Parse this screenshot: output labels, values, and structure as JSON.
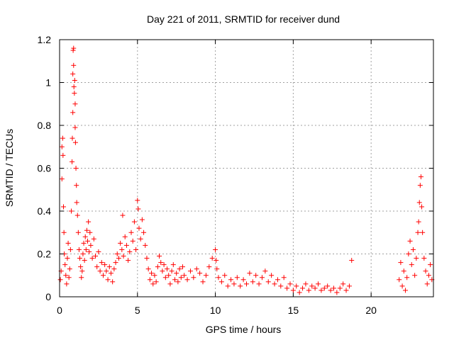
{
  "chart_data": {
    "type": "scatter",
    "title": "Day 221 of 2011, SRMTID for receiver dund",
    "xlabel": "GPS time / hours",
    "ylabel": "SRMTID / TECUs",
    "xlim": [
      0,
      24
    ],
    "ylim": [
      0,
      1.2
    ],
    "xticks": [
      0,
      5,
      10,
      15,
      20
    ],
    "xtick_labels": [
      "0",
      "5",
      "10",
      "15",
      "20"
    ],
    "yticks": [
      0,
      0.2,
      0.4,
      0.6,
      0.8,
      1,
      1.2
    ],
    "ytick_labels": [
      "0",
      "0.2",
      "0.4",
      "0.6",
      "0.8",
      "1",
      "1.2"
    ],
    "grid": true,
    "marker": "+",
    "series": [
      {
        "name": "SRMTID",
        "color": "#ff0000",
        "points": [
          [
            0.05,
            0.08
          ],
          [
            0.1,
            0.12
          ],
          [
            0.15,
            0.55
          ],
          [
            0.15,
            0.7
          ],
          [
            0.2,
            0.74
          ],
          [
            0.22,
            0.66
          ],
          [
            0.25,
            0.42
          ],
          [
            0.28,
            0.3
          ],
          [
            0.3,
            0.2
          ],
          [
            0.35,
            0.15
          ],
          [
            0.4,
            0.1
          ],
          [
            0.45,
            0.06
          ],
          [
            0.5,
            0.18
          ],
          [
            0.55,
            0.25
          ],
          [
            0.6,
            0.09
          ],
          [
            0.65,
            0.13
          ],
          [
            0.7,
            0.22
          ],
          [
            0.75,
            0.4
          ],
          [
            0.8,
            0.63
          ],
          [
            0.82,
            0.74
          ],
          [
            0.85,
            0.86
          ],
          [
            0.85,
            1.04
          ],
          [
            0.87,
            1.15
          ],
          [
            0.9,
            1.16
          ],
          [
            0.9,
            1.08
          ],
          [
            0.92,
            0.98
          ],
          [
            0.95,
            0.95
          ],
          [
            0.97,
            1.01
          ],
          [
            1.0,
            0.9
          ],
          [
            1.0,
            0.79
          ],
          [
            1.02,
            0.72
          ],
          [
            1.05,
            0.6
          ],
          [
            1.08,
            0.52
          ],
          [
            1.1,
            0.44
          ],
          [
            1.15,
            0.38
          ],
          [
            1.2,
            0.3
          ],
          [
            1.25,
            0.22
          ],
          [
            1.3,
            0.18
          ],
          [
            1.35,
            0.14
          ],
          [
            1.4,
            0.09
          ],
          [
            1.45,
            0.12
          ],
          [
            1.5,
            0.2
          ],
          [
            1.55,
            0.25
          ],
          [
            1.6,
            0.17
          ],
          [
            1.65,
            0.28
          ],
          [
            1.7,
            0.22
          ],
          [
            1.75,
            0.31
          ],
          [
            1.8,
            0.26
          ],
          [
            1.85,
            0.35
          ],
          [
            1.9,
            0.21
          ],
          [
            1.95,
            0.3
          ],
          [
            2.0,
            0.24
          ],
          [
            2.1,
            0.18
          ],
          [
            2.2,
            0.27
          ],
          [
            2.3,
            0.19
          ],
          [
            2.4,
            0.14
          ],
          [
            2.5,
            0.21
          ],
          [
            2.6,
            0.12
          ],
          [
            2.7,
            0.16
          ],
          [
            2.8,
            0.1
          ],
          [
            2.9,
            0.15
          ],
          [
            3.0,
            0.12
          ],
          [
            3.1,
            0.08
          ],
          [
            3.2,
            0.14
          ],
          [
            3.3,
            0.11
          ],
          [
            3.4,
            0.07
          ],
          [
            3.5,
            0.13
          ],
          [
            3.6,
            0.16
          ],
          [
            3.7,
            0.2
          ],
          [
            3.8,
            0.18
          ],
          [
            3.9,
            0.25
          ],
          [
            4.0,
            0.22
          ],
          [
            4.05,
            0.38
          ],
          [
            4.1,
            0.19
          ],
          [
            4.2,
            0.28
          ],
          [
            4.3,
            0.24
          ],
          [
            4.4,
            0.17
          ],
          [
            4.5,
            0.21
          ],
          [
            4.6,
            0.3
          ],
          [
            4.7,
            0.26
          ],
          [
            4.8,
            0.35
          ],
          [
            4.9,
            0.22
          ],
          [
            5.0,
            0.45
          ],
          [
            5.05,
            0.41
          ],
          [
            5.1,
            0.32
          ],
          [
            5.2,
            0.27
          ],
          [
            5.3,
            0.36
          ],
          [
            5.4,
            0.3
          ],
          [
            5.5,
            0.24
          ],
          [
            5.6,
            0.18
          ],
          [
            5.7,
            0.13
          ],
          [
            5.8,
            0.08
          ],
          [
            5.9,
            0.11
          ],
          [
            6.0,
            0.06
          ],
          [
            6.1,
            0.1
          ],
          [
            6.2,
            0.07
          ],
          [
            6.3,
            0.14
          ],
          [
            6.4,
            0.19
          ],
          [
            6.5,
            0.16
          ],
          [
            6.6,
            0.12
          ],
          [
            6.7,
            0.15
          ],
          [
            6.8,
            0.09
          ],
          [
            6.9,
            0.13
          ],
          [
            7.0,
            0.1
          ],
          [
            7.1,
            0.06
          ],
          [
            7.2,
            0.12
          ],
          [
            7.3,
            0.15
          ],
          [
            7.4,
            0.08
          ],
          [
            7.5,
            0.11
          ],
          [
            7.6,
            0.07
          ],
          [
            7.7,
            0.13
          ],
          [
            7.8,
            0.09
          ],
          [
            7.9,
            0.14
          ],
          [
            8.0,
            0.1
          ],
          [
            8.2,
            0.08
          ],
          [
            8.4,
            0.12
          ],
          [
            8.6,
            0.09
          ],
          [
            8.8,
            0.13
          ],
          [
            9.0,
            0.11
          ],
          [
            9.2,
            0.07
          ],
          [
            9.4,
            0.1
          ],
          [
            9.6,
            0.14
          ],
          [
            9.8,
            0.18
          ],
          [
            10.0,
            0.22
          ],
          [
            10.05,
            0.17
          ],
          [
            10.1,
            0.13
          ],
          [
            10.2,
            0.09
          ],
          [
            10.4,
            0.07
          ],
          [
            10.6,
            0.1
          ],
          [
            10.8,
            0.05
          ],
          [
            11.0,
            0.08
          ],
          [
            11.2,
            0.06
          ],
          [
            11.4,
            0.09
          ],
          [
            11.6,
            0.05
          ],
          [
            11.8,
            0.08
          ],
          [
            12.0,
            0.06
          ],
          [
            12.2,
            0.11
          ],
          [
            12.4,
            0.07
          ],
          [
            12.6,
            0.1
          ],
          [
            12.8,
            0.06
          ],
          [
            13.0,
            0.09
          ],
          [
            13.2,
            0.12
          ],
          [
            13.4,
            0.07
          ],
          [
            13.6,
            0.1
          ],
          [
            13.8,
            0.06
          ],
          [
            14.0,
            0.08
          ],
          [
            14.2,
            0.05
          ],
          [
            14.4,
            0.09
          ],
          [
            14.6,
            0.04
          ],
          [
            14.8,
            0.06
          ],
          [
            15.0,
            0.03
          ],
          [
            15.2,
            0.05
          ],
          [
            15.4,
            0.02
          ],
          [
            15.6,
            0.04
          ],
          [
            15.8,
            0.06
          ],
          [
            16.0,
            0.03
          ],
          [
            16.2,
            0.05
          ],
          [
            16.4,
            0.04
          ],
          [
            16.6,
            0.06
          ],
          [
            16.8,
            0.03
          ],
          [
            17.0,
            0.04
          ],
          [
            17.2,
            0.05
          ],
          [
            17.4,
            0.03
          ],
          [
            17.6,
            0.04
          ],
          [
            17.8,
            0.02
          ],
          [
            18.0,
            0.04
          ],
          [
            18.2,
            0.06
          ],
          [
            18.4,
            0.03
          ],
          [
            18.6,
            0.05
          ],
          [
            18.75,
            0.17
          ],
          [
            21.8,
            0.08
          ],
          [
            21.9,
            0.16
          ],
          [
            22.0,
            0.05
          ],
          [
            22.1,
            0.12
          ],
          [
            22.2,
            0.03
          ],
          [
            22.3,
            0.09
          ],
          [
            22.4,
            0.2
          ],
          [
            22.5,
            0.26
          ],
          [
            22.6,
            0.15
          ],
          [
            22.7,
            0.22
          ],
          [
            22.8,
            0.1
          ],
          [
            22.9,
            0.18
          ],
          [
            23.0,
            0.3
          ],
          [
            23.05,
            0.35
          ],
          [
            23.1,
            0.44
          ],
          [
            23.15,
            0.52
          ],
          [
            23.2,
            0.56
          ],
          [
            23.25,
            0.42
          ],
          [
            23.3,
            0.3
          ],
          [
            23.4,
            0.18
          ],
          [
            23.5,
            0.12
          ],
          [
            23.6,
            0.06
          ],
          [
            23.7,
            0.1
          ],
          [
            23.8,
            0.15
          ],
          [
            23.9,
            0.08
          ]
        ]
      }
    ]
  }
}
